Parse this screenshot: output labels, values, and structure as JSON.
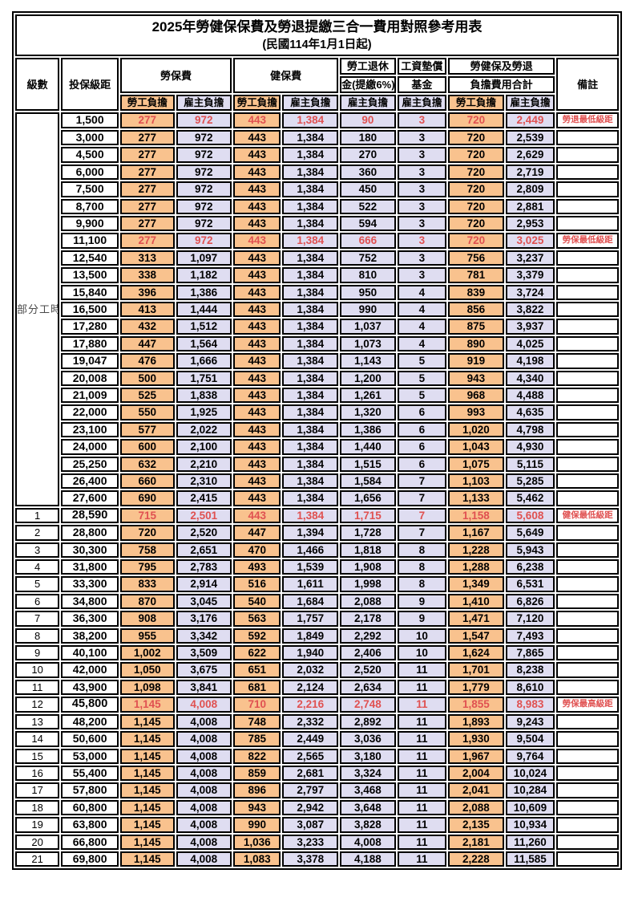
{
  "title": "2025年勞健保保費及勞退提繳三合一費用對照參考用表",
  "subtitle": "(民國114年1月1日起)",
  "header": {
    "level": "級數",
    "bracket": "投保級距",
    "labor_ins": "勞保費",
    "health_ins": "健保費",
    "pension_line1": "勞工退休",
    "pension_line2": "金(提繳6%)",
    "wage_fund_line1": "工資墊償",
    "wage_fund_line2": "基金",
    "total_line1": "勞健保及勞退",
    "total_line2": "負擔費用合計",
    "remark": "備註",
    "employee": "勞工負擔",
    "employer": "雇主負擔"
  },
  "part_time_label": "部分工時",
  "colors": {
    "employee_bg": "#F9C28E",
    "employer_bg": "#DFDDF1",
    "highlight_red": "#E05151",
    "border": "#000000"
  },
  "rows": [
    {
      "level": "",
      "bracket": "1,500",
      "li_emp": "277",
      "li_er": "972",
      "hi_emp": "443",
      "hi_er": "1,384",
      "pension": "90",
      "wage_fund": "3",
      "tot_emp": "720",
      "tot_er": "2,449",
      "remark": "勞退最低級距",
      "highlight": true,
      "bold_bracket": false
    },
    {
      "level": "",
      "bracket": "3,000",
      "li_emp": "277",
      "li_er": "972",
      "hi_emp": "443",
      "hi_er": "1,384",
      "pension": "180",
      "wage_fund": "3",
      "tot_emp": "720",
      "tot_er": "2,539",
      "remark": "",
      "highlight": false,
      "bold_bracket": false
    },
    {
      "level": "",
      "bracket": "4,500",
      "li_emp": "277",
      "li_er": "972",
      "hi_emp": "443",
      "hi_er": "1,384",
      "pension": "270",
      "wage_fund": "3",
      "tot_emp": "720",
      "tot_er": "2,629",
      "remark": "",
      "highlight": false,
      "bold_bracket": false
    },
    {
      "level": "",
      "bracket": "6,000",
      "li_emp": "277",
      "li_er": "972",
      "hi_emp": "443",
      "hi_er": "1,384",
      "pension": "360",
      "wage_fund": "3",
      "tot_emp": "720",
      "tot_er": "2,719",
      "remark": "",
      "highlight": false,
      "bold_bracket": false
    },
    {
      "level": "",
      "bracket": "7,500",
      "li_emp": "277",
      "li_er": "972",
      "hi_emp": "443",
      "hi_er": "1,384",
      "pension": "450",
      "wage_fund": "3",
      "tot_emp": "720",
      "tot_er": "2,809",
      "remark": "",
      "highlight": false,
      "bold_bracket": false
    },
    {
      "level": "",
      "bracket": "8,700",
      "li_emp": "277",
      "li_er": "972",
      "hi_emp": "443",
      "hi_er": "1,384",
      "pension": "522",
      "wage_fund": "3",
      "tot_emp": "720",
      "tot_er": "2,881",
      "remark": "",
      "highlight": false,
      "bold_bracket": false
    },
    {
      "level": "",
      "bracket": "9,900",
      "li_emp": "277",
      "li_er": "972",
      "hi_emp": "443",
      "hi_er": "1,384",
      "pension": "594",
      "wage_fund": "3",
      "tot_emp": "720",
      "tot_er": "2,953",
      "remark": "",
      "highlight": false,
      "bold_bracket": false
    },
    {
      "level": "",
      "bracket": "11,100",
      "li_emp": "277",
      "li_er": "972",
      "hi_emp": "443",
      "hi_er": "1,384",
      "pension": "666",
      "wage_fund": "3",
      "tot_emp": "720",
      "tot_er": "3,025",
      "remark": "勞保最低級距",
      "highlight": true,
      "bold_bracket": false
    },
    {
      "level": "",
      "bracket": "12,540",
      "li_emp": "313",
      "li_er": "1,097",
      "hi_emp": "443",
      "hi_er": "1,384",
      "pension": "752",
      "wage_fund": "3",
      "tot_emp": "756",
      "tot_er": "3,237",
      "remark": "",
      "highlight": false,
      "bold_bracket": false
    },
    {
      "level": "",
      "bracket": "13,500",
      "li_emp": "338",
      "li_er": "1,182",
      "hi_emp": "443",
      "hi_er": "1,384",
      "pension": "810",
      "wage_fund": "3",
      "tot_emp": "781",
      "tot_er": "3,379",
      "remark": "",
      "highlight": false,
      "bold_bracket": false
    },
    {
      "level": "",
      "bracket": "15,840",
      "li_emp": "396",
      "li_er": "1,386",
      "hi_emp": "443",
      "hi_er": "1,384",
      "pension": "950",
      "wage_fund": "4",
      "tot_emp": "839",
      "tot_er": "3,724",
      "remark": "",
      "highlight": false,
      "bold_bracket": false
    },
    {
      "level": "",
      "bracket": "16,500",
      "li_emp": "413",
      "li_er": "1,444",
      "hi_emp": "443",
      "hi_er": "1,384",
      "pension": "990",
      "wage_fund": "4",
      "tot_emp": "856",
      "tot_er": "3,822",
      "remark": "",
      "highlight": false,
      "bold_bracket": false
    },
    {
      "level": "",
      "bracket": "17,280",
      "li_emp": "432",
      "li_er": "1,512",
      "hi_emp": "443",
      "hi_er": "1,384",
      "pension": "1,037",
      "wage_fund": "4",
      "tot_emp": "875",
      "tot_er": "3,937",
      "remark": "",
      "highlight": false,
      "bold_bracket": false
    },
    {
      "level": "",
      "bracket": "17,880",
      "li_emp": "447",
      "li_er": "1,564",
      "hi_emp": "443",
      "hi_er": "1,384",
      "pension": "1,073",
      "wage_fund": "4",
      "tot_emp": "890",
      "tot_er": "4,025",
      "remark": "",
      "highlight": false,
      "bold_bracket": false
    },
    {
      "level": "",
      "bracket": "19,047",
      "li_emp": "476",
      "li_er": "1,666",
      "hi_emp": "443",
      "hi_er": "1,384",
      "pension": "1,143",
      "wage_fund": "5",
      "tot_emp": "919",
      "tot_er": "4,198",
      "remark": "",
      "highlight": false,
      "bold_bracket": false
    },
    {
      "level": "",
      "bracket": "20,008",
      "li_emp": "500",
      "li_er": "1,751",
      "hi_emp": "443",
      "hi_er": "1,384",
      "pension": "1,200",
      "wage_fund": "5",
      "tot_emp": "943",
      "tot_er": "4,340",
      "remark": "",
      "highlight": false,
      "bold_bracket": false
    },
    {
      "level": "",
      "bracket": "21,009",
      "li_emp": "525",
      "li_er": "1,838",
      "hi_emp": "443",
      "hi_er": "1,384",
      "pension": "1,261",
      "wage_fund": "5",
      "tot_emp": "968",
      "tot_er": "4,488",
      "remark": "",
      "highlight": false,
      "bold_bracket": false
    },
    {
      "level": "",
      "bracket": "22,000",
      "li_emp": "550",
      "li_er": "1,925",
      "hi_emp": "443",
      "hi_er": "1,384",
      "pension": "1,320",
      "wage_fund": "6",
      "tot_emp": "993",
      "tot_er": "4,635",
      "remark": "",
      "highlight": false,
      "bold_bracket": false
    },
    {
      "level": "",
      "bracket": "23,100",
      "li_emp": "577",
      "li_er": "2,022",
      "hi_emp": "443",
      "hi_er": "1,384",
      "pension": "1,386",
      "wage_fund": "6",
      "tot_emp": "1,020",
      "tot_er": "4,798",
      "remark": "",
      "highlight": false,
      "bold_bracket": false
    },
    {
      "level": "",
      "bracket": "24,000",
      "li_emp": "600",
      "li_er": "2,100",
      "hi_emp": "443",
      "hi_er": "1,384",
      "pension": "1,440",
      "wage_fund": "6",
      "tot_emp": "1,043",
      "tot_er": "4,930",
      "remark": "",
      "highlight": false,
      "bold_bracket": false
    },
    {
      "level": "",
      "bracket": "25,250",
      "li_emp": "632",
      "li_er": "2,210",
      "hi_emp": "443",
      "hi_er": "1,384",
      "pension": "1,515",
      "wage_fund": "6",
      "tot_emp": "1,075",
      "tot_er": "5,115",
      "remark": "",
      "highlight": false,
      "bold_bracket": false
    },
    {
      "level": "",
      "bracket": "26,400",
      "li_emp": "660",
      "li_er": "2,310",
      "hi_emp": "443",
      "hi_er": "1,384",
      "pension": "1,584",
      "wage_fund": "7",
      "tot_emp": "1,103",
      "tot_er": "5,285",
      "remark": "",
      "highlight": false,
      "bold_bracket": false
    },
    {
      "level": "",
      "bracket": "27,600",
      "li_emp": "690",
      "li_er": "2,415",
      "hi_emp": "443",
      "hi_er": "1,384",
      "pension": "1,656",
      "wage_fund": "7",
      "tot_emp": "1,133",
      "tot_er": "5,462",
      "remark": "",
      "highlight": false,
      "bold_bracket": false
    },
    {
      "level": "1",
      "bracket": "28,590",
      "li_emp": "715",
      "li_er": "2,501",
      "hi_emp": "443",
      "hi_er": "1,384",
      "pension": "1,715",
      "wage_fund": "7",
      "tot_emp": "1,158",
      "tot_er": "5,608",
      "remark": "健保最低級距",
      "highlight": true,
      "bold_bracket": true
    },
    {
      "level": "2",
      "bracket": "28,800",
      "li_emp": "720",
      "li_er": "2,520",
      "hi_emp": "447",
      "hi_er": "1,394",
      "pension": "1,728",
      "wage_fund": "7",
      "tot_emp": "1,167",
      "tot_er": "5,649",
      "remark": "",
      "highlight": false,
      "bold_bracket": false
    },
    {
      "level": "3",
      "bracket": "30,300",
      "li_emp": "758",
      "li_er": "2,651",
      "hi_emp": "470",
      "hi_er": "1,466",
      "pension": "1,818",
      "wage_fund": "8",
      "tot_emp": "1,228",
      "tot_er": "5,943",
      "remark": "",
      "highlight": false,
      "bold_bracket": false
    },
    {
      "level": "4",
      "bracket": "31,800",
      "li_emp": "795",
      "li_er": "2,783",
      "hi_emp": "493",
      "hi_er": "1,539",
      "pension": "1,908",
      "wage_fund": "8",
      "tot_emp": "1,288",
      "tot_er": "6,238",
      "remark": "",
      "highlight": false,
      "bold_bracket": false
    },
    {
      "level": "5",
      "bracket": "33,300",
      "li_emp": "833",
      "li_er": "2,914",
      "hi_emp": "516",
      "hi_er": "1,611",
      "pension": "1,998",
      "wage_fund": "8",
      "tot_emp": "1,349",
      "tot_er": "6,531",
      "remark": "",
      "highlight": false,
      "bold_bracket": false
    },
    {
      "level": "6",
      "bracket": "34,800",
      "li_emp": "870",
      "li_er": "3,045",
      "hi_emp": "540",
      "hi_er": "1,684",
      "pension": "2,088",
      "wage_fund": "9",
      "tot_emp": "1,410",
      "tot_er": "6,826",
      "remark": "",
      "highlight": false,
      "bold_bracket": false
    },
    {
      "level": "7",
      "bracket": "36,300",
      "li_emp": "908",
      "li_er": "3,176",
      "hi_emp": "563",
      "hi_er": "1,757",
      "pension": "2,178",
      "wage_fund": "9",
      "tot_emp": "1,471",
      "tot_er": "7,120",
      "remark": "",
      "highlight": false,
      "bold_bracket": false
    },
    {
      "level": "8",
      "bracket": "38,200",
      "li_emp": "955",
      "li_er": "3,342",
      "hi_emp": "592",
      "hi_er": "1,849",
      "pension": "2,292",
      "wage_fund": "10",
      "tot_emp": "1,547",
      "tot_er": "7,493",
      "remark": "",
      "highlight": false,
      "bold_bracket": false
    },
    {
      "level": "9",
      "bracket": "40,100",
      "li_emp": "1,002",
      "li_er": "3,509",
      "hi_emp": "622",
      "hi_er": "1,940",
      "pension": "2,406",
      "wage_fund": "10",
      "tot_emp": "1,624",
      "tot_er": "7,865",
      "remark": "",
      "highlight": false,
      "bold_bracket": false
    },
    {
      "level": "10",
      "bracket": "42,000",
      "li_emp": "1,050",
      "li_er": "3,675",
      "hi_emp": "651",
      "hi_er": "2,032",
      "pension": "2,520",
      "wage_fund": "11",
      "tot_emp": "1,701",
      "tot_er": "8,238",
      "remark": "",
      "highlight": false,
      "bold_bracket": false
    },
    {
      "level": "11",
      "bracket": "43,900",
      "li_emp": "1,098",
      "li_er": "3,841",
      "hi_emp": "681",
      "hi_er": "2,124",
      "pension": "2,634",
      "wage_fund": "11",
      "tot_emp": "1,779",
      "tot_er": "8,610",
      "remark": "",
      "highlight": false,
      "bold_bracket": false
    },
    {
      "level": "12",
      "bracket": "45,800",
      "li_emp": "1,145",
      "li_er": "4,008",
      "hi_emp": "710",
      "hi_er": "2,216",
      "pension": "2,748",
      "wage_fund": "11",
      "tot_emp": "1,855",
      "tot_er": "8,983",
      "remark": "勞保最高級距",
      "highlight": true,
      "bold_bracket": true
    },
    {
      "level": "13",
      "bracket": "48,200",
      "li_emp": "1,145",
      "li_er": "4,008",
      "hi_emp": "748",
      "hi_er": "2,332",
      "pension": "2,892",
      "wage_fund": "11",
      "tot_emp": "1,893",
      "tot_er": "9,243",
      "remark": "",
      "highlight": false,
      "bold_bracket": false
    },
    {
      "level": "14",
      "bracket": "50,600",
      "li_emp": "1,145",
      "li_er": "4,008",
      "hi_emp": "785",
      "hi_er": "2,449",
      "pension": "3,036",
      "wage_fund": "11",
      "tot_emp": "1,930",
      "tot_er": "9,504",
      "remark": "",
      "highlight": false,
      "bold_bracket": false
    },
    {
      "level": "15",
      "bracket": "53,000",
      "li_emp": "1,145",
      "li_er": "4,008",
      "hi_emp": "822",
      "hi_er": "2,565",
      "pension": "3,180",
      "wage_fund": "11",
      "tot_emp": "1,967",
      "tot_er": "9,764",
      "remark": "",
      "highlight": false,
      "bold_bracket": false
    },
    {
      "level": "16",
      "bracket": "55,400",
      "li_emp": "1,145",
      "li_er": "4,008",
      "hi_emp": "859",
      "hi_er": "2,681",
      "pension": "3,324",
      "wage_fund": "11",
      "tot_emp": "2,004",
      "tot_er": "10,024",
      "remark": "",
      "highlight": false,
      "bold_bracket": false
    },
    {
      "level": "17",
      "bracket": "57,800",
      "li_emp": "1,145",
      "li_er": "4,008",
      "hi_emp": "896",
      "hi_er": "2,797",
      "pension": "3,468",
      "wage_fund": "11",
      "tot_emp": "2,041",
      "tot_er": "10,284",
      "remark": "",
      "highlight": false,
      "bold_bracket": false
    },
    {
      "level": "18",
      "bracket": "60,800",
      "li_emp": "1,145",
      "li_er": "4,008",
      "hi_emp": "943",
      "hi_er": "2,942",
      "pension": "3,648",
      "wage_fund": "11",
      "tot_emp": "2,088",
      "tot_er": "10,609",
      "remark": "",
      "highlight": false,
      "bold_bracket": false
    },
    {
      "level": "19",
      "bracket": "63,800",
      "li_emp": "1,145",
      "li_er": "4,008",
      "hi_emp": "990",
      "hi_er": "3,087",
      "pension": "3,828",
      "wage_fund": "11",
      "tot_emp": "2,135",
      "tot_er": "10,934",
      "remark": "",
      "highlight": false,
      "bold_bracket": false
    },
    {
      "level": "20",
      "bracket": "66,800",
      "li_emp": "1,145",
      "li_er": "4,008",
      "hi_emp": "1,036",
      "hi_er": "3,233",
      "pension": "4,008",
      "wage_fund": "11",
      "tot_emp": "2,181",
      "tot_er": "11,260",
      "remark": "",
      "highlight": false,
      "bold_bracket": false
    },
    {
      "level": "21",
      "bracket": "69,800",
      "li_emp": "1,145",
      "li_er": "4,008",
      "hi_emp": "1,083",
      "hi_er": "3,378",
      "pension": "4,188",
      "wage_fund": "11",
      "tot_emp": "2,228",
      "tot_er": "11,585",
      "remark": "",
      "highlight": false,
      "bold_bracket": false
    }
  ]
}
